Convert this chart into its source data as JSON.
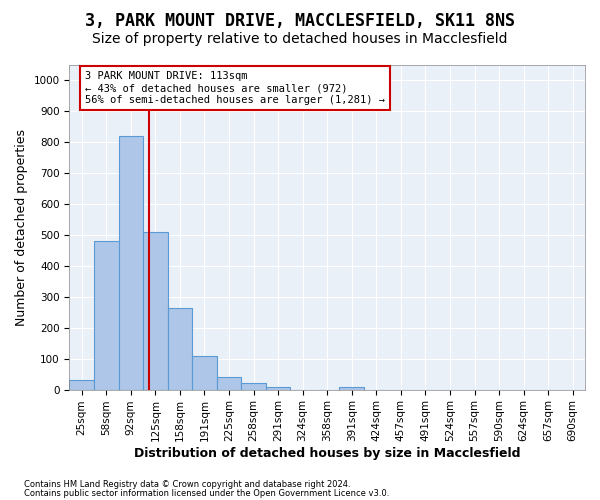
{
  "title": "3, PARK MOUNT DRIVE, MACCLESFIELD, SK11 8NS",
  "subtitle": "Size of property relative to detached houses in Macclesfield",
  "xlabel": "Distribution of detached houses by size in Macclesfield",
  "ylabel": "Number of detached properties",
  "footnote1": "Contains HM Land Registry data © Crown copyright and database right 2024.",
  "footnote2": "Contains public sector information licensed under the Open Government Licence v3.0.",
  "bin_labels": [
    "25sqm",
    "58sqm",
    "92sqm",
    "125sqm",
    "158sqm",
    "191sqm",
    "225sqm",
    "258sqm",
    "291sqm",
    "324sqm",
    "358sqm",
    "391sqm",
    "424sqm",
    "457sqm",
    "491sqm",
    "524sqm",
    "557sqm",
    "590sqm",
    "624sqm",
    "657sqm",
    "690sqm"
  ],
  "bar_values": [
    30,
    480,
    820,
    510,
    265,
    110,
    40,
    20,
    10,
    0,
    0,
    10,
    0,
    0,
    0,
    0,
    0,
    0,
    0,
    0,
    0
  ],
  "bar_color": "#aec6e8",
  "bar_edge_color": "#5b9bd5",
  "vline_x": 2.75,
  "vline_color": "#cc0000",
  "annotation_text": "3 PARK MOUNT DRIVE: 113sqm\n← 43% of detached houses are smaller (972)\n56% of semi-detached houses are larger (1,281) →",
  "annotation_box_color": "#ffffff",
  "annotation_box_edge": "#cc0000",
  "ylim": [
    0,
    1050
  ],
  "yticks": [
    0,
    100,
    200,
    300,
    400,
    500,
    600,
    700,
    800,
    900,
    1000
  ],
  "bg_color": "#eaf0f8",
  "grid_color": "#ffffff",
  "title_fontsize": 12,
  "subtitle_fontsize": 10,
  "tick_fontsize": 7.5,
  "ylabel_fontsize": 9,
  "xlabel_fontsize": 9
}
